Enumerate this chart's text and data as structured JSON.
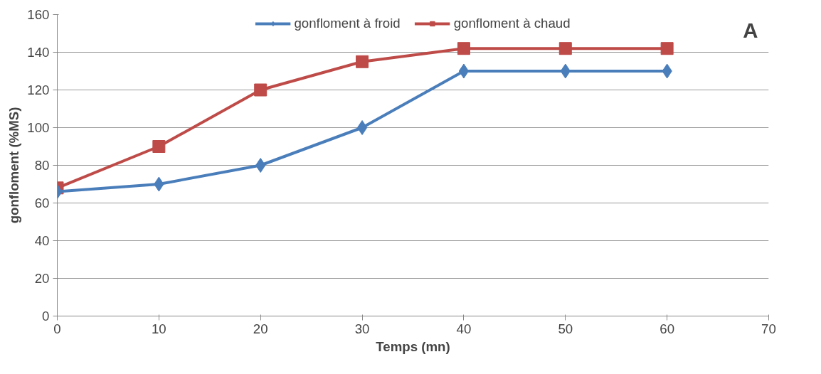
{
  "chart_data": {
    "type": "line",
    "xlabel": "Temps (mn)",
    "ylabel": "gonfloment (%MS)",
    "x": [
      0,
      10,
      20,
      30,
      40,
      50,
      60
    ],
    "series": [
      {
        "name": "gonfloment à froid",
        "color": "#4a7ebb",
        "marker": "diamond",
        "values": [
          66,
          70,
          80,
          100,
          130,
          130,
          130
        ]
      },
      {
        "name": "gonfloment à chaud",
        "color": "#be4b48",
        "marker": "square",
        "values": [
          68,
          90,
          120,
          135,
          142,
          142,
          142
        ]
      }
    ],
    "xlim": [
      0,
      70
    ],
    "xticks": [
      0,
      10,
      20,
      30,
      40,
      50,
      60,
      70
    ],
    "ylim": [
      0,
      160
    ],
    "yticks": [
      0,
      20,
      40,
      60,
      80,
      100,
      120,
      140,
      160
    ],
    "grid": "y",
    "legend": "top",
    "annotations": [
      "A"
    ]
  }
}
